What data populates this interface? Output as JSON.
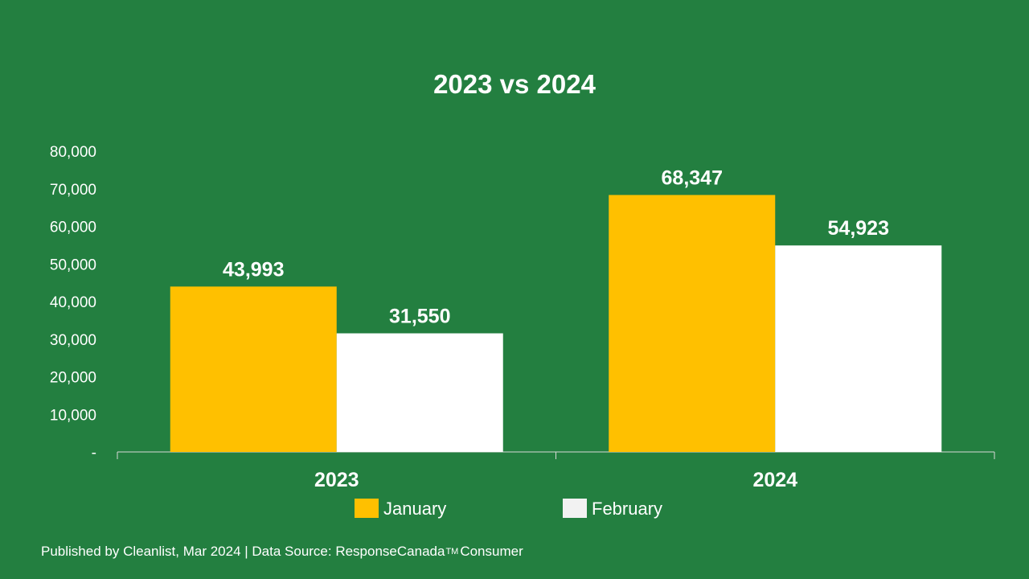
{
  "chart_data": {
    "type": "bar",
    "title": "2023 vs 2024",
    "categories": [
      "2023",
      "2024"
    ],
    "series": [
      {
        "name": "January",
        "values": [
          43993,
          68347
        ],
        "labels": [
          "43,993",
          "68,347"
        ],
        "color": "#ffc000"
      },
      {
        "name": "February",
        "values": [
          31550,
          54923
        ],
        "labels": [
          "31,550",
          "54,923"
        ],
        "color": "#ffffff"
      }
    ],
    "ylim": [
      0,
      80000
    ],
    "yticks": [
      0,
      10000,
      20000,
      30000,
      40000,
      50000,
      60000,
      70000,
      80000
    ],
    "ytick_labels": [
      "-",
      "10,000",
      "20,000",
      "30,000",
      "40,000",
      "50,000",
      "60,000",
      "70,000",
      "80,000"
    ],
    "xlabel": "",
    "ylabel": "",
    "grid": false,
    "legend_position": "bottom",
    "legend_swatch_colors": [
      "#ffc000",
      "#f2f2f2"
    ]
  },
  "footer": {
    "prefix": "Published by Cleanlist, Mar 2024 | Data Source: ResponseCanada",
    "trademark": "TM",
    "suffix": "Consumer"
  },
  "colors": {
    "background": "#237f40",
    "text": "#ffffff",
    "axis": "#d9d9d9"
  }
}
